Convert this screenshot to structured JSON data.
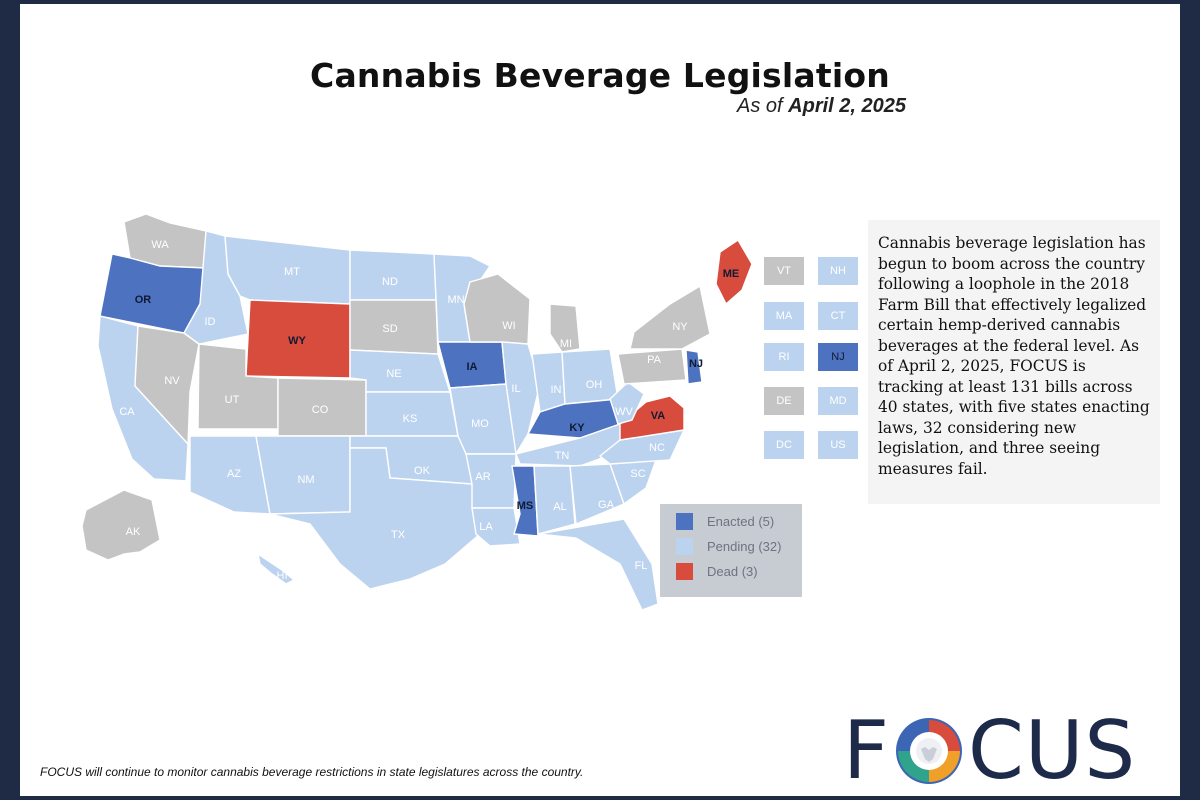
{
  "title": "Cannabis Beverage Legislation",
  "subtitle_prefix": "As of",
  "subtitle_date": "April 2, 2025",
  "colors": {
    "enacted": "#4d72bf",
    "pending": "#bcd3ef",
    "dead": "#d84c3d",
    "none": "#c4c4c4"
  },
  "states": [
    {
      "abbr": "WA",
      "status": "none"
    },
    {
      "abbr": "OR",
      "status": "enacted"
    },
    {
      "abbr": "CA",
      "status": "pending"
    },
    {
      "abbr": "NV",
      "status": "none"
    },
    {
      "abbr": "ID",
      "status": "pending"
    },
    {
      "abbr": "MT",
      "status": "pending"
    },
    {
      "abbr": "WY",
      "status": "dead"
    },
    {
      "abbr": "UT",
      "status": "none"
    },
    {
      "abbr": "CO",
      "status": "none"
    },
    {
      "abbr": "AZ",
      "status": "pending"
    },
    {
      "abbr": "NM",
      "status": "pending"
    },
    {
      "abbr": "ND",
      "status": "pending"
    },
    {
      "abbr": "SD",
      "status": "none"
    },
    {
      "abbr": "NE",
      "status": "pending"
    },
    {
      "abbr": "KS",
      "status": "pending"
    },
    {
      "abbr": "OK",
      "status": "pending"
    },
    {
      "abbr": "TX",
      "status": "pending"
    },
    {
      "abbr": "MN",
      "status": "pending"
    },
    {
      "abbr": "IA",
      "status": "enacted"
    },
    {
      "abbr": "MO",
      "status": "pending"
    },
    {
      "abbr": "AR",
      "status": "pending"
    },
    {
      "abbr": "LA",
      "status": "pending"
    },
    {
      "abbr": "WI",
      "status": "none"
    },
    {
      "abbr": "IL",
      "status": "pending"
    },
    {
      "abbr": "MI",
      "status": "none"
    },
    {
      "abbr": "IN",
      "status": "pending"
    },
    {
      "abbr": "OH",
      "status": "pending"
    },
    {
      "abbr": "KY",
      "status": "enacted"
    },
    {
      "abbr": "TN",
      "status": "pending"
    },
    {
      "abbr": "MS",
      "status": "enacted"
    },
    {
      "abbr": "AL",
      "status": "pending"
    },
    {
      "abbr": "GA",
      "status": "pending"
    },
    {
      "abbr": "FL",
      "status": "pending"
    },
    {
      "abbr": "SC",
      "status": "pending"
    },
    {
      "abbr": "NC",
      "status": "pending"
    },
    {
      "abbr": "VA",
      "status": "dead"
    },
    {
      "abbr": "WV",
      "status": "pending"
    },
    {
      "abbr": "PA",
      "status": "none"
    },
    {
      "abbr": "NY",
      "status": "none"
    },
    {
      "abbr": "NJ",
      "status": "enacted"
    },
    {
      "abbr": "ME",
      "status": "dead"
    },
    {
      "abbr": "AK",
      "status": "none"
    },
    {
      "abbr": "HI",
      "status": "pending"
    }
  ],
  "small_states": [
    {
      "abbr": "VT",
      "status": "none"
    },
    {
      "abbr": "NH",
      "status": "pending"
    },
    {
      "abbr": "MA",
      "status": "pending"
    },
    {
      "abbr": "CT",
      "status": "pending"
    },
    {
      "abbr": "RI",
      "status": "pending"
    },
    {
      "abbr": "NJ",
      "status": "enacted"
    },
    {
      "abbr": "DE",
      "status": "none"
    },
    {
      "abbr": "MD",
      "status": "pending"
    },
    {
      "abbr": "DC",
      "status": "pending"
    },
    {
      "abbr": "US",
      "status": "pending"
    }
  ],
  "legend": [
    {
      "label": "Enacted (5)",
      "status": "enacted"
    },
    {
      "label": "Pending (32)",
      "status": "pending"
    },
    {
      "label": "Dead (3)",
      "status": "dead"
    }
  ],
  "description": "Cannabis beverage legislation has begun to boom across the country following a loophole in the 2018 Farm Bill that effectively legalized certain hemp-derived cannabis beverages at the federal level. As of April 2, 2025, FOCUS is tracking at least 131 bills across 40 states, with five states enacting laws, 32 considering new legislation, and three seeing measures fail.",
  "footer": "FOCUS will continue to monitor cannabis beverage restrictions in state legislatures across the country.",
  "logo": {
    "prefix": "F",
    "suffix": "CUS"
  }
}
